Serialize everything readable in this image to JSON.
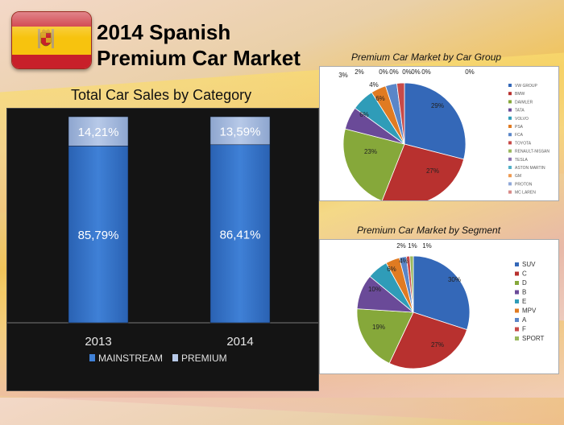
{
  "title": {
    "line1": "2014 Spanish",
    "line2": "Premium Car Market"
  },
  "charts_headings": {
    "left": "Total Car Sales by Category",
    "car_group": "Premium Car Market by Car Group",
    "segment": "Premium Car Market by Segment"
  },
  "chart_data": [
    {
      "type": "bar",
      "stacked": true,
      "title": "Total Car Sales by Category",
      "categories": [
        "2013",
        "2014"
      ],
      "series": [
        {
          "name": "MAINSTREAM",
          "values": [
            85.79,
            86.41
          ],
          "labels": [
            "85,79%",
            "86,41%"
          ],
          "color": "#2f6fc0"
        },
        {
          "name": "PREMIUM",
          "values": [
            14.21,
            13.59
          ],
          "labels": [
            "14,21%",
            "13,59%"
          ],
          "color": "#a8bde0"
        }
      ],
      "ylim": [
        0,
        100
      ],
      "legend_position": "bottom"
    },
    {
      "type": "pie",
      "title": "Premium Car Market by Car Group",
      "labels": [
        "VW GROUP",
        "BMW",
        "DAIMLER",
        "TATA",
        "VOLVO",
        "PSA",
        "FCA",
        "TOYOTA",
        "RENAULT-NISSAN",
        "TESLA",
        "ASTON MARTIN",
        "GM",
        "PROTON",
        "MC LAREN"
      ],
      "values": [
        29,
        27,
        23,
        6,
        6,
        4,
        3,
        2,
        0,
        0,
        0,
        0,
        0,
        0
      ],
      "data_labels": [
        "29%",
        "27%",
        "23%",
        "6%",
        "6%",
        "4%",
        "3%",
        "2%",
        "0%",
        "0%",
        "0%",
        "0%",
        "0%",
        "0%"
      ],
      "colors": [
        "#3468b8",
        "#b8312f",
        "#86a83a",
        "#6a4a98",
        "#2f9cb8",
        "#e07b22",
        "#5a86c8",
        "#c84a48",
        "#9ab85c",
        "#8a72b0",
        "#52b0c8",
        "#ee9a52",
        "#90a8d8",
        "#d88a88"
      ],
      "legend_position": "right"
    },
    {
      "type": "pie",
      "title": "Premium Car Market by Segment",
      "labels": [
        "SUV",
        "C",
        "D",
        "B",
        "E",
        "MPV",
        "A",
        "F",
        "SPORT"
      ],
      "values": [
        30,
        27,
        19,
        10,
        6,
        4,
        2,
        1,
        1
      ],
      "data_labels": [
        "30%",
        "27%",
        "19%",
        "10%",
        "6%",
        "4%",
        "2%",
        "1%",
        "1%"
      ],
      "colors": [
        "#3468b8",
        "#b8312f",
        "#86a83a",
        "#6a4a98",
        "#2f9cb8",
        "#e07b22",
        "#5a86c8",
        "#c84a48",
        "#9ab85c"
      ],
      "legend_position": "right"
    }
  ]
}
